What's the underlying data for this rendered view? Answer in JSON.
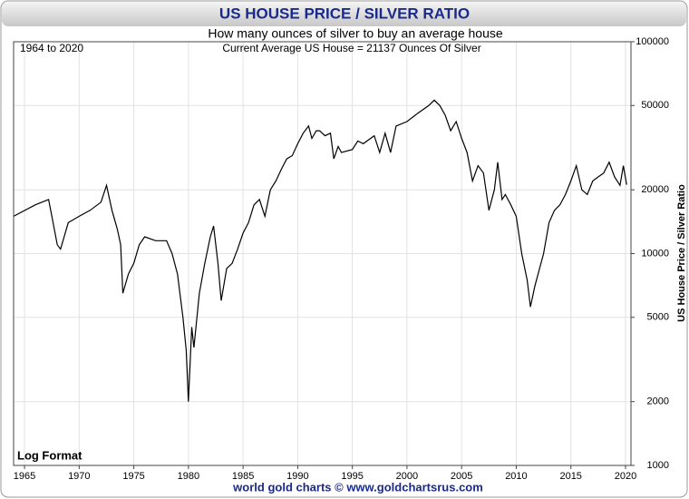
{
  "chart_data": {
    "type": "line",
    "title": "US HOUSE PRICE / SILVER RATIO",
    "subtitle": "How many ounces of silver to buy an average house",
    "annotations": [
      "1964 to 2020",
      "Current Average US House = 21137 Ounces Of Silver",
      "Log Format"
    ],
    "ylabel": "US House Price / Silver Ratio",
    "source": "world gold charts © www.goldchartsrus.com",
    "log_scale": true,
    "grid": true,
    "color": "#000000",
    "xlim": [
      1964,
      2020.5
    ],
    "xticks": [
      1965,
      1970,
      1975,
      1980,
      1985,
      1990,
      1995,
      2000,
      2005,
      2010,
      2015,
      2020
    ],
    "ylim": [
      1000,
      100000
    ],
    "yticks": [
      1000,
      2000,
      5000,
      10000,
      20000,
      50000,
      100000
    ],
    "x": [
      1964,
      1966,
      1967.2,
      1967.5,
      1968,
      1968.3,
      1969,
      1970,
      1971,
      1972,
      1972.5,
      1973,
      1973.5,
      1973.8,
      1974,
      1974.5,
      1975,
      1975.5,
      1976,
      1977,
      1978,
      1978.5,
      1979,
      1979.5,
      1979.8,
      1980,
      1980.3,
      1980.5,
      1981,
      1981.5,
      1982,
      1982.3,
      1982.7,
      1983,
      1983.5,
      1984,
      1984.5,
      1985,
      1985.5,
      1986,
      1986.5,
      1987,
      1987.5,
      1988,
      1988.5,
      1989,
      1989.5,
      1990,
      1990.5,
      1991,
      1991.3,
      1991.7,
      1992,
      1992.5,
      1993,
      1993.3,
      1993.7,
      1994,
      1995,
      1995.5,
      1996,
      1997,
      1997.5,
      1998,
      1998.5,
      1999,
      2000,
      2001,
      2002,
      2002.5,
      2003,
      2003.5,
      2004,
      2004.5,
      2005,
      2005.5,
      2006,
      2006.5,
      2007,
      2007.5,
      2008,
      2008.3,
      2008.7,
      2009,
      2009.5,
      2010,
      2010.5,
      2011,
      2011.3,
      2011.7,
      2012,
      2012.5,
      2013,
      2013.5,
      2014,
      2014.5,
      2015,
      2015.5,
      2016,
      2016.5,
      2017,
      2017.5,
      2018,
      2018.5,
      2019,
      2019.5,
      2019.8,
      2020.1
    ],
    "values": [
      15000,
      17000,
      18000,
      15000,
      11000,
      10500,
      14000,
      15000,
      16000,
      17500,
      21000,
      16000,
      13000,
      11000,
      6500,
      8000,
      9000,
      11000,
      12000,
      11500,
      11500,
      10000,
      8000,
      5000,
      3500,
      2000,
      4500,
      3600,
      6500,
      9000,
      12000,
      13500,
      9000,
      6000,
      8500,
      9000,
      10500,
      12500,
      14000,
      17000,
      18000,
      15000,
      20000,
      22000,
      25000,
      28000,
      29000,
      33000,
      37000,
      40000,
      35000,
      38000,
      38000,
      36000,
      37000,
      28000,
      32000,
      30000,
      31000,
      34000,
      33000,
      36000,
      30000,
      37000,
      30000,
      40000,
      42000,
      46000,
      50000,
      53000,
      50000,
      45000,
      38000,
      42000,
      35000,
      30000,
      22000,
      26000,
      24000,
      16000,
      20000,
      27000,
      18000,
      19000,
      17000,
      15000,
      10000,
      7500,
      5600,
      7000,
      8000,
      10000,
      14000,
      16000,
      17000,
      19000,
      22000,
      26000,
      20000,
      19000,
      22000,
      23000,
      24000,
      27000,
      23000,
      21000,
      26000,
      21137
    ]
  }
}
